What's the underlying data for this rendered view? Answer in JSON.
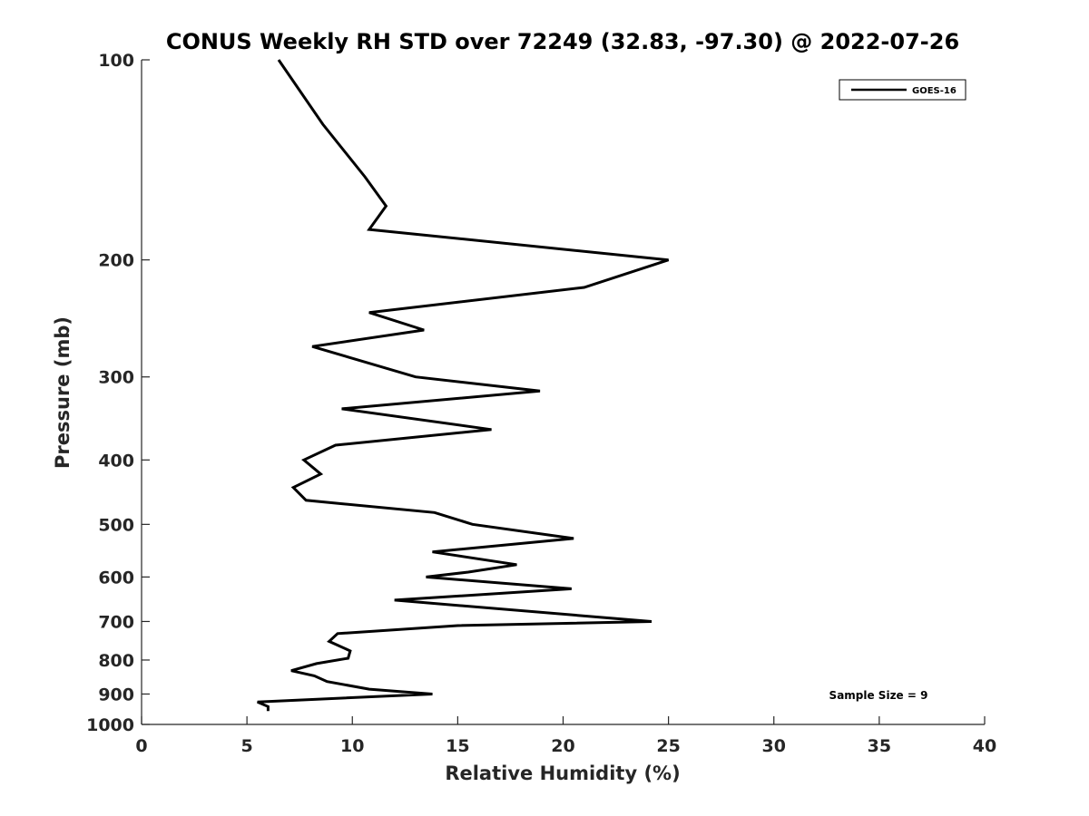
{
  "chart_data": {
    "type": "line",
    "title": "CONUS Weekly RH STD over 72249 (32.83, -97.30) @ 2022-07-26",
    "xlabel": "Relative Humidity (%)",
    "ylabel": "Pressure (mb)",
    "xlim": [
      0,
      40
    ],
    "ylim": [
      100,
      1000
    ],
    "yscale": "log",
    "y_reversed": true,
    "grid": false,
    "legend_position": "top-right",
    "x_ticks": [
      0,
      5,
      10,
      15,
      20,
      25,
      30,
      35,
      40
    ],
    "y_ticks": [
      100,
      200,
      300,
      400,
      500,
      600,
      700,
      800,
      900,
      1000
    ],
    "series": [
      {
        "name": "GOES-16",
        "color": "#000000",
        "points": [
          [
            6.5,
            100
          ],
          [
            8.6,
            125
          ],
          [
            10.6,
            150
          ],
          [
            11.6,
            166
          ],
          [
            10.8,
            180
          ],
          [
            25.0,
            200
          ],
          [
            21.0,
            220
          ],
          [
            10.8,
            240
          ],
          [
            13.4,
            255
          ],
          [
            8.1,
            270
          ],
          [
            13.0,
            300
          ],
          [
            18.9,
            315
          ],
          [
            9.5,
            335
          ],
          [
            16.6,
            360
          ],
          [
            9.2,
            380
          ],
          [
            7.7,
            400
          ],
          [
            8.5,
            420
          ],
          [
            7.2,
            440
          ],
          [
            7.8,
            460
          ],
          [
            13.9,
            480
          ],
          [
            15.7,
            500
          ],
          [
            20.5,
            525
          ],
          [
            13.8,
            550
          ],
          [
            17.8,
            575
          ],
          [
            15.5,
            590
          ],
          [
            13.5,
            600
          ],
          [
            20.4,
            625
          ],
          [
            12.0,
            650
          ],
          [
            24.2,
            700
          ],
          [
            15.0,
            710
          ],
          [
            9.3,
            730
          ],
          [
            8.9,
            750
          ],
          [
            9.9,
            775
          ],
          [
            9.8,
            795
          ],
          [
            8.3,
            810
          ],
          [
            7.1,
            830
          ],
          [
            8.2,
            845
          ],
          [
            8.8,
            862
          ],
          [
            10.8,
            885
          ],
          [
            13.8,
            900
          ],
          [
            5.5,
            925
          ],
          [
            6.0,
            940
          ],
          [
            6.0,
            955
          ]
        ]
      }
    ],
    "annotations": [
      "Sample Size = 9"
    ]
  }
}
